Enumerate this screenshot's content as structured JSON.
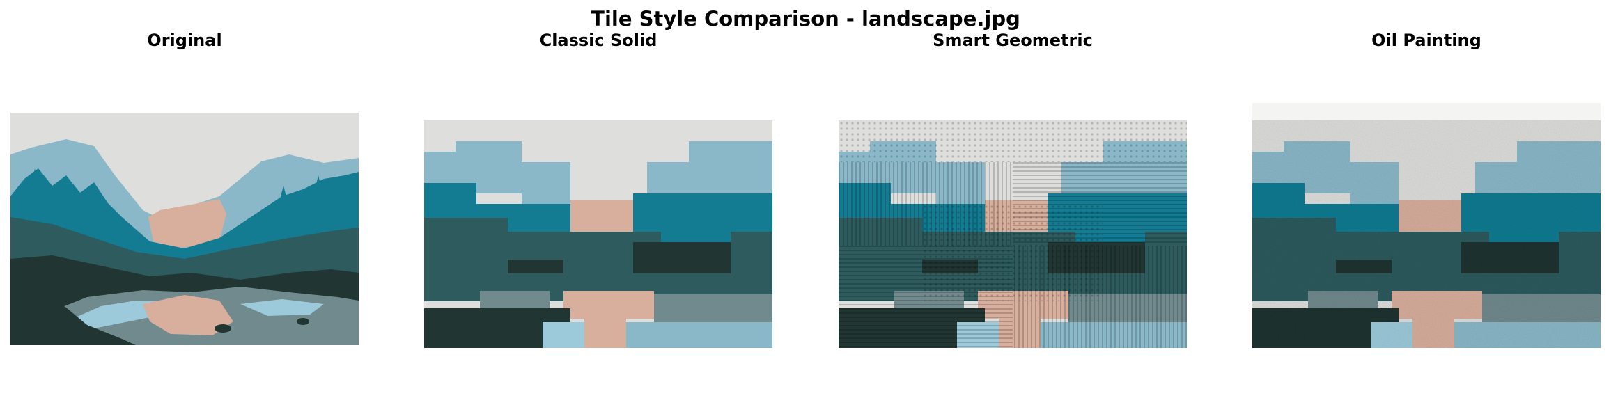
{
  "figure": {
    "title": "Tile Style Comparison - landscape.jpg"
  },
  "palette": {
    "sky": "#dededc",
    "mountain": "#8ab8c8",
    "teal": "#147c92",
    "dark_teal": "#2d5b5e",
    "forest": "#213632",
    "peach": "#d8ae9c",
    "gray": "#718a8e",
    "light_blue": "#9ccadb"
  },
  "panels": [
    {
      "title": "Original",
      "style": "original"
    },
    {
      "title": "Classic Solid",
      "style": "solid"
    },
    {
      "title": "Smart Geometric",
      "style": "geometric"
    },
    {
      "title": "Oil Painting",
      "style": "oil"
    }
  ]
}
